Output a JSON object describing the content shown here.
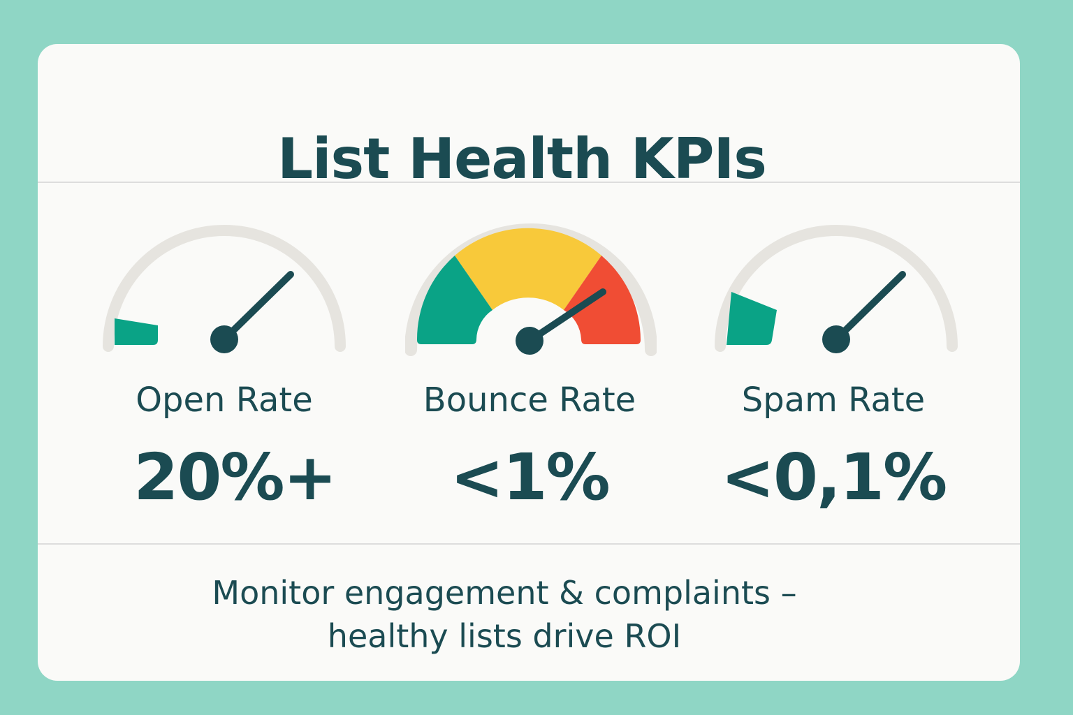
{
  "title": "List Health KPIs",
  "kpis": [
    {
      "label": "Open Rate",
      "value": "20%+",
      "icon": "speedometer-icon"
    },
    {
      "label": "Bounce Rate",
      "value": "<1%",
      "icon": "speedometer-icon"
    },
    {
      "label": "Spam Rate",
      "value": "<0,1%",
      "icon": "speedometer-icon"
    }
  ],
  "footer": {
    "line1": "Monitor engagement & complaints –",
    "line2": "healthy lists drive ROI"
  },
  "colors": {
    "background": "#8fd6c5",
    "card": "#fafaf8",
    "text": "#1b4b52",
    "green": "#0aa386",
    "yellow": "#f8c93a",
    "red": "#f04d34",
    "track": "#e6e4df"
  }
}
